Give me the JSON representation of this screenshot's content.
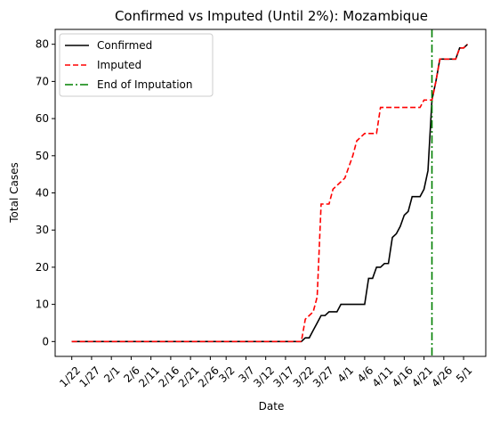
{
  "chart_data": {
    "type": "line",
    "title": "Confirmed vs Imputed (Until 2%): Mozambique",
    "xlabel": "Date",
    "ylabel": "Total Cases",
    "ylim": [
      -4,
      84
    ],
    "x_tick_labels": [
      "1/22",
      "1/27",
      "2/1",
      "2/6",
      "2/11",
      "2/16",
      "2/21",
      "2/26",
      "3/2",
      "3/7",
      "3/12",
      "3/17",
      "3/22",
      "3/27",
      "4/1",
      "4/6",
      "4/11",
      "4/16",
      "4/21",
      "4/26",
      "5/1"
    ],
    "x_tick_day_of_year": [
      22,
      27,
      32,
      37,
      42,
      47,
      52,
      57,
      61,
      66,
      71,
      76,
      81,
      86,
      91,
      96,
      101,
      106,
      111,
      116,
      121
    ],
    "xlim_day_of_year": [
      17.8,
      126.6
    ],
    "y_ticks": [
      0,
      10,
      20,
      30,
      40,
      50,
      60,
      70,
      80
    ],
    "legend_position": "upper left",
    "grid": false,
    "series": [
      {
        "name": "Confirmed",
        "color": "#000000",
        "dash": "solid",
        "points": [
          [
            22,
            0
          ],
          [
            80,
            0
          ],
          [
            81,
            1
          ],
          [
            82,
            1
          ],
          [
            83,
            3
          ],
          [
            84,
            5
          ],
          [
            85,
            7
          ],
          [
            86,
            7
          ],
          [
            87,
            8
          ],
          [
            88,
            8
          ],
          [
            89,
            8
          ],
          [
            90,
            10
          ],
          [
            91,
            10
          ],
          [
            92,
            10
          ],
          [
            93,
            10
          ],
          [
            94,
            10
          ],
          [
            95,
            10
          ],
          [
            96,
            10
          ],
          [
            97,
            17
          ],
          [
            98,
            17
          ],
          [
            99,
            20
          ],
          [
            100,
            20
          ],
          [
            101,
            21
          ],
          [
            102,
            21
          ],
          [
            103,
            28
          ],
          [
            104,
            29
          ],
          [
            105,
            31
          ],
          [
            106,
            34
          ],
          [
            107,
            35
          ],
          [
            108,
            39
          ],
          [
            109,
            39
          ],
          [
            110,
            39
          ],
          [
            111,
            41
          ],
          [
            112,
            46
          ],
          [
            113,
            65
          ],
          [
            114,
            70
          ],
          [
            115,
            76
          ],
          [
            116,
            76
          ],
          [
            117,
            76
          ],
          [
            118,
            76
          ],
          [
            119,
            76
          ],
          [
            120,
            79
          ],
          [
            121,
            79
          ],
          [
            122,
            80
          ]
        ]
      },
      {
        "name": "Imputed",
        "color": "#ff0000",
        "dash": "dashed",
        "points": [
          [
            22,
            0
          ],
          [
            79,
            0
          ],
          [
            80,
            0
          ],
          [
            81,
            6
          ],
          [
            82,
            7
          ],
          [
            83,
            8
          ],
          [
            84,
            12
          ],
          [
            85,
            37
          ],
          [
            86,
            37
          ],
          [
            87,
            37
          ],
          [
            88,
            41
          ],
          [
            89,
            42
          ],
          [
            90,
            43
          ],
          [
            91,
            44
          ],
          [
            92,
            47
          ],
          [
            93,
            50
          ],
          [
            94,
            54
          ],
          [
            95,
            55
          ],
          [
            96,
            56
          ],
          [
            97,
            56
          ],
          [
            98,
            56
          ],
          [
            99,
            56
          ],
          [
            100,
            63
          ],
          [
            101,
            63
          ],
          [
            102,
            63
          ],
          [
            103,
            63
          ],
          [
            104,
            63
          ],
          [
            105,
            63
          ],
          [
            106,
            63
          ],
          [
            107,
            63
          ],
          [
            108,
            63
          ],
          [
            109,
            63
          ],
          [
            110,
            63
          ],
          [
            111,
            65
          ],
          [
            112,
            65
          ],
          [
            113,
            65
          ],
          [
            114,
            70
          ],
          [
            115,
            76
          ],
          [
            116,
            76
          ],
          [
            117,
            76
          ],
          [
            118,
            76
          ],
          [
            119,
            76
          ],
          [
            120,
            79
          ],
          [
            121,
            79
          ],
          [
            122,
            80
          ]
        ]
      },
      {
        "name": "End of Imputation",
        "color": "#008000",
        "dash": "dashdot",
        "vertical_x": 113
      }
    ]
  }
}
